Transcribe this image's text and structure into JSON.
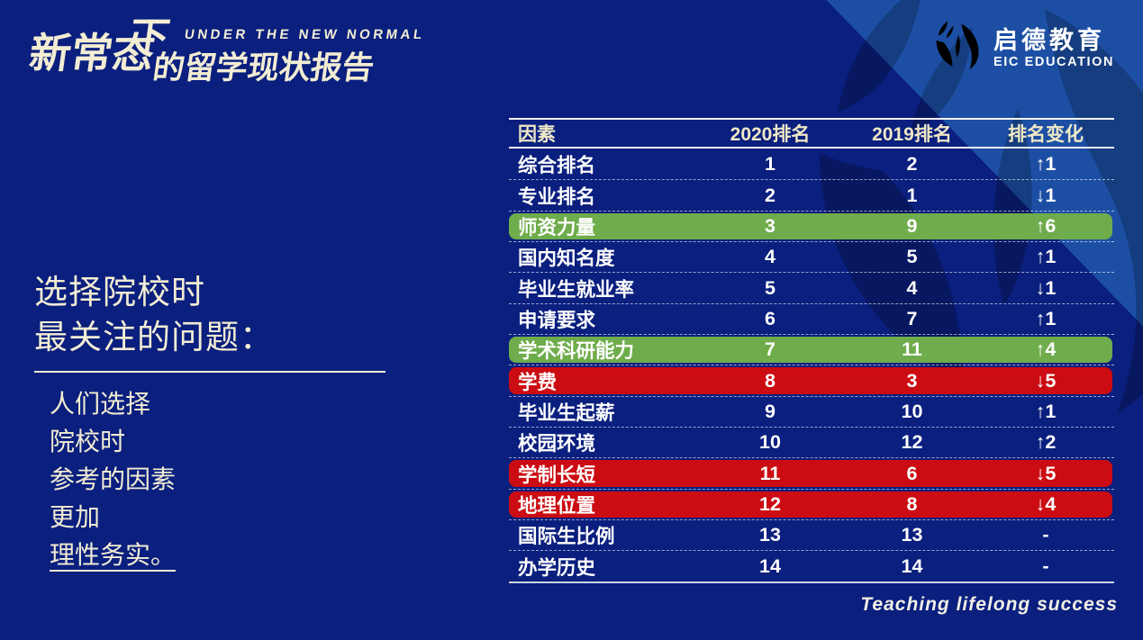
{
  "title_block": {
    "tagline_en": "UNDER THE NEW NORMAL",
    "zh_big": "新常态",
    "zh_xia": "下",
    "zh_rest": "的留学现状报告"
  },
  "brand": {
    "name_zh": "启德教育",
    "name_en": "EIC EDUCATION",
    "logo_icon": "eic-swirl-icon"
  },
  "left_panel": {
    "heading_line1": "选择院校时",
    "heading_line2": "最关注的问题：",
    "body_lines": [
      "人们选择",
      "院校时",
      "参考的因素",
      "更加"
    ],
    "body_underlined": "理性务实。"
  },
  "table": {
    "columns": [
      "因素",
      "2020排名",
      "2019排名",
      "排名变化"
    ],
    "rows": [
      {
        "factor": "综合排名",
        "rank2020": "1",
        "rank2019": "2",
        "change": "↑1",
        "highlight": "none"
      },
      {
        "factor": "专业排名",
        "rank2020": "2",
        "rank2019": "1",
        "change": "↓1",
        "highlight": "none"
      },
      {
        "factor": "师资力量",
        "rank2020": "3",
        "rank2019": "9",
        "change": "↑6",
        "highlight": "green"
      },
      {
        "factor": "国内知名度",
        "rank2020": "4",
        "rank2019": "5",
        "change": "↑1",
        "highlight": "none"
      },
      {
        "factor": "毕业生就业率",
        "rank2020": "5",
        "rank2019": "4",
        "change": "↓1",
        "highlight": "none"
      },
      {
        "factor": "申请要求",
        "rank2020": "6",
        "rank2019": "7",
        "change": "↑1",
        "highlight": "none"
      },
      {
        "factor": "学术科研能力",
        "rank2020": "7",
        "rank2019": "11",
        "change": "↑4",
        "highlight": "green"
      },
      {
        "factor": "学费",
        "rank2020": "8",
        "rank2019": "3",
        "change": "↓5",
        "highlight": "red"
      },
      {
        "factor": "毕业生起薪",
        "rank2020": "9",
        "rank2019": "10",
        "change": "↑1",
        "highlight": "none"
      },
      {
        "factor": "校园环境",
        "rank2020": "10",
        "rank2019": "12",
        "change": "↑2",
        "highlight": "none"
      },
      {
        "factor": "学制长短",
        "rank2020": "11",
        "rank2019": "6",
        "change": "↓5",
        "highlight": "red"
      },
      {
        "factor": "地理位置",
        "rank2020": "12",
        "rank2019": "8",
        "change": "↓4",
        "highlight": "red"
      },
      {
        "factor": "国际生比例",
        "rank2020": "13",
        "rank2019": "13",
        "change": "-",
        "highlight": "none"
      },
      {
        "factor": "办学历史",
        "rank2020": "14",
        "rank2019": "14",
        "change": "-",
        "highlight": "none"
      }
    ]
  },
  "footer": {
    "slogan": "Teaching lifelong success"
  },
  "colors": {
    "background": "#0A1F7E",
    "corner_band": "#1C4FA4",
    "cream_text": "#F2EDD3",
    "header_yellow": "#EFE8C6",
    "highlight_green": "#6FAC4B",
    "highlight_red": "#CB0C12"
  }
}
